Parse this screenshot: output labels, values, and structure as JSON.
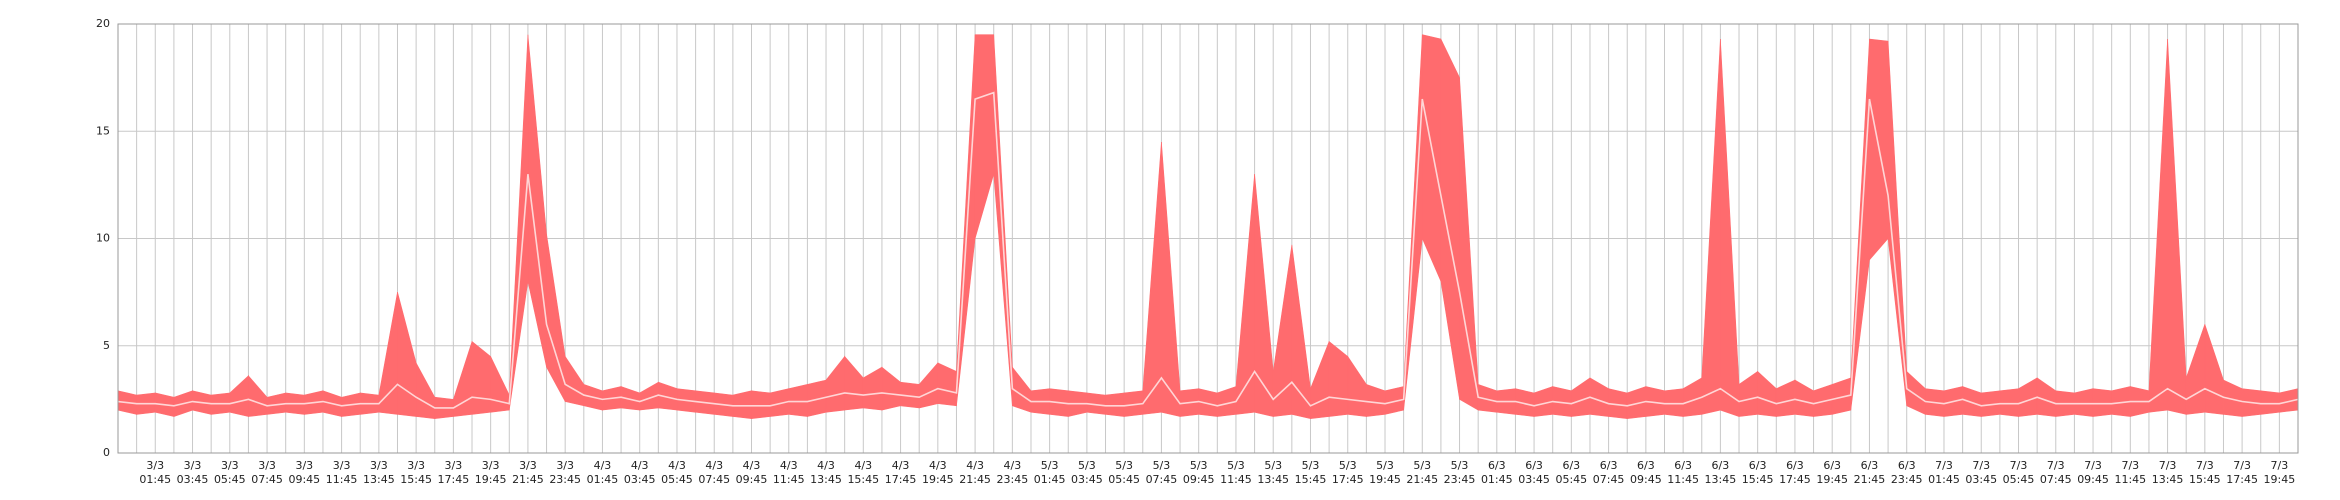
{
  "chart_data": {
    "type": "band",
    "ylim": [
      0,
      20
    ],
    "yticks": [
      0,
      5,
      10,
      15,
      20
    ],
    "grid": true,
    "categories": [
      null,
      null,
      [
        "3/3",
        "01:45"
      ],
      null,
      [
        "3/3",
        "03:45"
      ],
      null,
      [
        "3/3",
        "05:45"
      ],
      null,
      [
        "3/3",
        "07:45"
      ],
      null,
      [
        "3/3",
        "09:45"
      ],
      null,
      [
        "3/3",
        "11:45"
      ],
      null,
      [
        "3/3",
        "13:45"
      ],
      null,
      [
        "3/3",
        "15:45"
      ],
      null,
      [
        "3/3",
        "17:45"
      ],
      null,
      [
        "3/3",
        "19:45"
      ],
      null,
      [
        "3/3",
        "21:45"
      ],
      null,
      [
        "3/3",
        "23:45"
      ],
      null,
      [
        "4/3",
        "01:45"
      ],
      null,
      [
        "4/3",
        "03:45"
      ],
      null,
      [
        "4/3",
        "05:45"
      ],
      null,
      [
        "4/3",
        "07:45"
      ],
      null,
      [
        "4/3",
        "09:45"
      ],
      null,
      [
        "4/3",
        "11:45"
      ],
      null,
      [
        "4/3",
        "13:45"
      ],
      null,
      [
        "4/3",
        "15:45"
      ],
      null,
      [
        "4/3",
        "17:45"
      ],
      null,
      [
        "4/3",
        "19:45"
      ],
      null,
      [
        "4/3",
        "21:45"
      ],
      null,
      [
        "4/3",
        "23:45"
      ],
      null,
      [
        "5/3",
        "01:45"
      ],
      null,
      [
        "5/3",
        "03:45"
      ],
      null,
      [
        "5/3",
        "05:45"
      ],
      null,
      [
        "5/3",
        "07:45"
      ],
      null,
      [
        "5/3",
        "09:45"
      ],
      null,
      [
        "5/3",
        "11:45"
      ],
      null,
      [
        "5/3",
        "13:45"
      ],
      null,
      [
        "5/3",
        "15:45"
      ],
      null,
      [
        "5/3",
        "17:45"
      ],
      null,
      [
        "5/3",
        "19:45"
      ],
      null,
      [
        "5/3",
        "21:45"
      ],
      null,
      [
        "5/3",
        "23:45"
      ],
      null,
      [
        "6/3",
        "01:45"
      ],
      null,
      [
        "6/3",
        "03:45"
      ],
      null,
      [
        "6/3",
        "05:45"
      ],
      null,
      [
        "6/3",
        "07:45"
      ],
      null,
      [
        "6/3",
        "09:45"
      ],
      null,
      [
        "6/3",
        "11:45"
      ],
      null,
      [
        "6/3",
        "13:45"
      ],
      null,
      [
        "6/3",
        "15:45"
      ],
      null,
      [
        "6/3",
        "17:45"
      ],
      null,
      [
        "6/3",
        "19:45"
      ],
      null,
      [
        "6/3",
        "21:45"
      ],
      null,
      [
        "6/3",
        "23:45"
      ],
      null,
      [
        "7/3",
        "01:45"
      ],
      null,
      [
        "7/3",
        "03:45"
      ],
      null,
      [
        "7/3",
        "05:45"
      ],
      null,
      [
        "7/3",
        "07:45"
      ],
      null,
      [
        "7/3",
        "09:45"
      ],
      null,
      [
        "7/3",
        "11:45"
      ],
      null,
      [
        "7/3",
        "13:45"
      ],
      null,
      [
        "7/3",
        "15:45"
      ],
      null,
      [
        "7/3",
        "17:45"
      ],
      null,
      [
        "7/3",
        "19:45"
      ],
      null
    ],
    "band": {
      "color": "#ff6b6e",
      "upper": [
        2.9,
        2.7,
        2.8,
        2.6,
        2.9,
        2.7,
        2.8,
        3.6,
        2.6,
        2.8,
        2.7,
        2.9,
        2.6,
        2.8,
        2.7,
        7.5,
        4.2,
        2.6,
        2.5,
        5.2,
        4.5,
        2.7,
        19.5,
        10.2,
        4.5,
        3.2,
        2.9,
        3.1,
        2.8,
        3.3,
        3.0,
        2.9,
        2.8,
        2.7,
        2.9,
        2.8,
        3.0,
        3.2,
        3.4,
        4.5,
        3.5,
        4.0,
        3.3,
        3.2,
        4.2,
        3.8,
        19.5,
        19.5,
        4.0,
        2.9,
        3.0,
        2.9,
        2.8,
        2.7,
        2.8,
        2.9,
        14.5,
        2.9,
        3.0,
        2.8,
        3.1,
        13.0,
        3.8,
        9.7,
        3.0,
        5.2,
        4.5,
        3.2,
        2.9,
        3.1,
        19.5,
        19.3,
        17.5,
        3.2,
        2.9,
        3.0,
        2.8,
        3.1,
        2.9,
        3.5,
        3.0,
        2.8,
        3.1,
        2.9,
        3.0,
        3.5,
        19.3,
        3.2,
        3.8,
        3.0,
        3.4,
        2.9,
        3.2,
        3.5,
        19.3,
        19.2,
        3.8,
        3.0,
        2.9,
        3.1,
        2.8,
        2.9,
        3.0,
        3.5,
        2.9,
        2.8,
        3.0,
        2.9,
        3.1,
        2.9,
        19.3,
        3.5,
        6.0,
        3.4,
        3.0,
        2.9,
        2.8,
        3.0
      ],
      "lower": [
        2.0,
        1.8,
        1.9,
        1.7,
        2.0,
        1.8,
        1.9,
        1.7,
        1.8,
        1.9,
        1.8,
        1.9,
        1.7,
        1.8,
        1.9,
        1.8,
        1.7,
        1.6,
        1.7,
        1.8,
        1.9,
        2.0,
        8.0,
        4.0,
        2.4,
        2.2,
        2.0,
        2.1,
        2.0,
        2.1,
        2.0,
        1.9,
        1.8,
        1.7,
        1.6,
        1.7,
        1.8,
        1.7,
        1.9,
        2.0,
        2.1,
        2.0,
        2.2,
        2.1,
        2.3,
        2.2,
        10.0,
        13.0,
        2.2,
        1.9,
        1.8,
        1.7,
        1.9,
        1.8,
        1.7,
        1.8,
        1.9,
        1.7,
        1.8,
        1.7,
        1.8,
        1.9,
        1.7,
        1.8,
        1.6,
        1.7,
        1.8,
        1.7,
        1.8,
        2.0,
        10.0,
        8.0,
        2.5,
        2.0,
        1.9,
        1.8,
        1.7,
        1.8,
        1.7,
        1.8,
        1.7,
        1.6,
        1.7,
        1.8,
        1.7,
        1.8,
        2.0,
        1.7,
        1.8,
        1.7,
        1.8,
        1.7,
        1.8,
        2.0,
        9.0,
        10.0,
        2.2,
        1.8,
        1.7,
        1.8,
        1.7,
        1.8,
        1.7,
        1.8,
        1.7,
        1.8,
        1.7,
        1.8,
        1.7,
        1.9,
        2.0,
        1.8,
        1.9,
        1.8,
        1.7,
        1.8,
        1.9,
        2.0
      ]
    },
    "line": {
      "color": "#ffd6d6",
      "values": [
        2.4,
        2.3,
        2.3,
        2.2,
        2.4,
        2.3,
        2.3,
        2.5,
        2.2,
        2.3,
        2.3,
        2.4,
        2.2,
        2.3,
        2.3,
        3.2,
        2.6,
        2.1,
        2.1,
        2.6,
        2.5,
        2.3,
        13.0,
        6.0,
        3.2,
        2.7,
        2.5,
        2.6,
        2.4,
        2.7,
        2.5,
        2.4,
        2.3,
        2.2,
        2.2,
        2.2,
        2.4,
        2.4,
        2.6,
        2.8,
        2.7,
        2.8,
        2.7,
        2.6,
        3.0,
        2.8,
        16.5,
        16.8,
        3.0,
        2.4,
        2.4,
        2.3,
        2.3,
        2.2,
        2.2,
        2.3,
        3.5,
        2.3,
        2.4,
        2.2,
        2.4,
        3.8,
        2.5,
        3.3,
        2.2,
        2.6,
        2.5,
        2.4,
        2.3,
        2.5,
        16.5,
        12.0,
        7.5,
        2.6,
        2.4,
        2.4,
        2.2,
        2.4,
        2.3,
        2.6,
        2.3,
        2.2,
        2.4,
        2.3,
        2.3,
        2.6,
        3.0,
        2.4,
        2.6,
        2.3,
        2.5,
        2.3,
        2.5,
        2.7,
        16.5,
        12.0,
        3.0,
        2.4,
        2.3,
        2.5,
        2.2,
        2.3,
        2.3,
        2.6,
        2.3,
        2.3,
        2.3,
        2.3,
        2.4,
        2.4,
        3.0,
        2.5,
        3.0,
        2.6,
        2.4,
        2.3,
        2.3,
        2.5
      ]
    }
  }
}
